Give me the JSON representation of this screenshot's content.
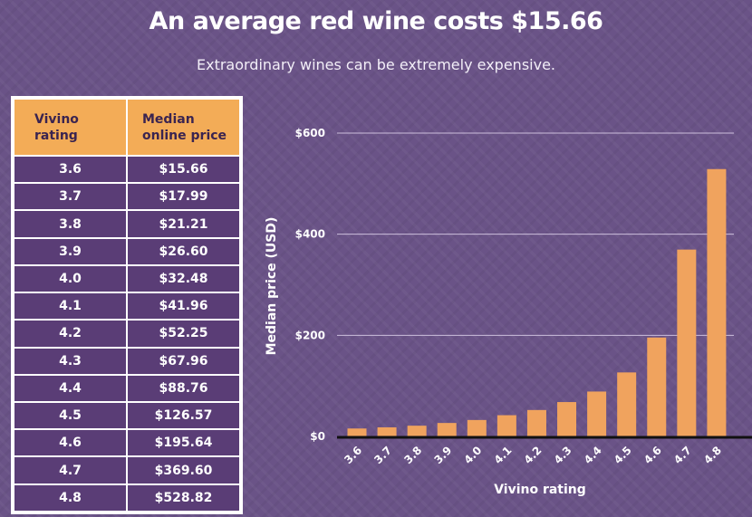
{
  "header": {
    "title": "An average red wine costs $15.66",
    "subtitle": "Extraordinary wines can be extremely expensive."
  },
  "table": {
    "col_rating": "Vivino rating",
    "col_price": "Median online price",
    "rows": [
      {
        "rating": "3.6",
        "price": "$15.66"
      },
      {
        "rating": "3.7",
        "price": "$17.99"
      },
      {
        "rating": "3.8",
        "price": "$21.21"
      },
      {
        "rating": "3.9",
        "price": "$26.60"
      },
      {
        "rating": "4.0",
        "price": "$32.48"
      },
      {
        "rating": "4.1",
        "price": "$41.96"
      },
      {
        "rating": "4.2",
        "price": "$52.25"
      },
      {
        "rating": "4.3",
        "price": "$67.96"
      },
      {
        "rating": "4.4",
        "price": "$88.76"
      },
      {
        "rating": "4.5",
        "price": "$126.57"
      },
      {
        "rating": "4.6",
        "price": "$195.64"
      },
      {
        "rating": "4.7",
        "price": "$369.60"
      },
      {
        "rating": "4.8",
        "price": "$528.82"
      }
    ]
  },
  "chart_data": {
    "type": "bar",
    "categories": [
      "3.6",
      "3.7",
      "3.8",
      "3.9",
      "4.0",
      "4.1",
      "4.2",
      "4.3",
      "4.4",
      "4.5",
      "4.6",
      "4.7",
      "4.8"
    ],
    "values": [
      15.66,
      17.99,
      21.21,
      26.6,
      32.48,
      41.96,
      52.25,
      67.96,
      88.76,
      126.57,
      195.64,
      369.6,
      528.82
    ],
    "xlabel": "Vivino rating",
    "ylabel": "Median price (USD)",
    "ylim": [
      0,
      600
    ],
    "yticks": [
      0,
      200,
      400,
      600
    ],
    "ytick_labels": [
      "$0",
      "$200",
      "$400",
      "$600"
    ],
    "grid": true,
    "colors": {
      "bar": "#f0a35e",
      "grid": "#cdbfdc",
      "baseline": "#111111"
    }
  }
}
